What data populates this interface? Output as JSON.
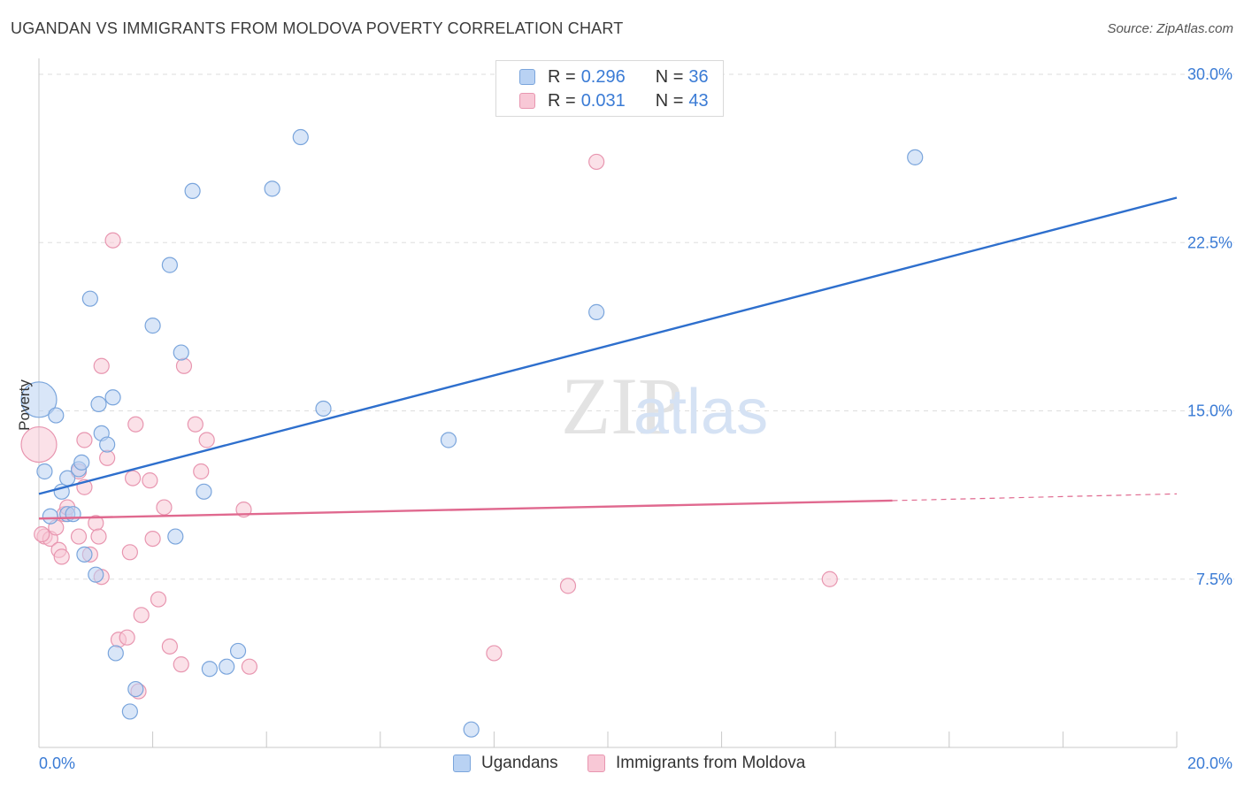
{
  "title": "UGANDAN VS IMMIGRANTS FROM MOLDOVA POVERTY CORRELATION CHART",
  "source": "Source: ZipAtlas.com",
  "legend": {
    "rows": [
      {
        "r_label": "R =",
        "r_value": "0.296",
        "n_label": "N =",
        "n_value": "36"
      },
      {
        "r_label": "R =",
        "r_value": "0.031",
        "n_label": "N =",
        "n_value": "43"
      }
    ],
    "bottom": [
      "Ugandans",
      "Immigrants from Moldova"
    ]
  },
  "watermark": {
    "part1": "ZIP",
    "part2": "atlas"
  },
  "colors": {
    "ugandans_fill": "#b9d2f3",
    "ugandans_stroke": "#7aa5dc",
    "ugandans_line": "#2e6fcd",
    "moldova_fill": "#f8c8d6",
    "moldova_stroke": "#e896b0",
    "moldova_line": "#e0698f",
    "tick_label": "#3a7bd5",
    "grid": "#dddddd"
  },
  "chart_data": {
    "type": "scatter",
    "xlabel": "",
    "ylabel": "Poverty",
    "xlim": [
      0,
      20
    ],
    "ylim": [
      0,
      30
    ],
    "x_tick_labels": [
      "0.0%",
      "20.0%"
    ],
    "y_ticks": [
      7.5,
      15.0,
      22.5,
      30.0
    ],
    "y_tick_labels": [
      "7.5%",
      "15.0%",
      "22.5%",
      "30.0%"
    ],
    "grid": "horizontal dashed",
    "legend_position": "top-center",
    "series": [
      {
        "name": "Ugandans",
        "points": [
          [
            0.0,
            15.5,
            "large"
          ],
          [
            0.1,
            12.3
          ],
          [
            0.3,
            14.8
          ],
          [
            0.2,
            10.3
          ],
          [
            0.4,
            11.4
          ],
          [
            0.5,
            10.4
          ],
          [
            0.5,
            12.0
          ],
          [
            0.6,
            10.4
          ],
          [
            0.7,
            12.4
          ],
          [
            0.75,
            12.7
          ],
          [
            0.8,
            8.6
          ],
          [
            0.9,
            20.0
          ],
          [
            1.0,
            7.7
          ],
          [
            1.05,
            15.3
          ],
          [
            1.1,
            14.0
          ],
          [
            1.2,
            13.5
          ],
          [
            1.3,
            15.6
          ],
          [
            1.35,
            4.2
          ],
          [
            1.6,
            1.6
          ],
          [
            1.7,
            2.6
          ],
          [
            2.0,
            18.8
          ],
          [
            2.3,
            21.5
          ],
          [
            2.4,
            9.4
          ],
          [
            2.5,
            17.6
          ],
          [
            2.7,
            24.8
          ],
          [
            2.9,
            11.4
          ],
          [
            3.0,
            3.5
          ],
          [
            3.3,
            3.6
          ],
          [
            3.5,
            4.3
          ],
          [
            4.1,
            24.9
          ],
          [
            4.6,
            27.2
          ],
          [
            5.0,
            15.1
          ],
          [
            7.2,
            13.7
          ],
          [
            7.6,
            0.8
          ],
          [
            9.8,
            19.4
          ],
          [
            15.4,
            26.3
          ]
        ],
        "trend": {
          "x": [
            0,
            20
          ],
          "y": [
            11.3,
            24.5
          ]
        }
      },
      {
        "name": "Immigrants from Moldova",
        "points": [
          [
            0.0,
            13.5,
            "large"
          ],
          [
            0.1,
            9.4
          ],
          [
            0.2,
            9.3
          ],
          [
            0.3,
            9.8
          ],
          [
            0.35,
            8.8
          ],
          [
            0.4,
            8.5
          ],
          [
            0.45,
            10.4
          ],
          [
            0.5,
            10.7
          ],
          [
            0.7,
            9.4
          ],
          [
            0.7,
            12.3
          ],
          [
            0.8,
            13.7
          ],
          [
            0.8,
            11.6
          ],
          [
            0.9,
            8.6
          ],
          [
            1.0,
            10.0
          ],
          [
            1.05,
            9.4
          ],
          [
            1.1,
            7.6
          ],
          [
            1.1,
            17.0
          ],
          [
            1.2,
            12.9
          ],
          [
            1.3,
            22.6
          ],
          [
            1.4,
            4.8
          ],
          [
            1.55,
            4.9
          ],
          [
            1.6,
            8.7
          ],
          [
            1.65,
            12.0
          ],
          [
            1.7,
            14.4
          ],
          [
            1.75,
            2.5
          ],
          [
            1.8,
            5.9
          ],
          [
            1.95,
            11.9
          ],
          [
            2.0,
            9.3
          ],
          [
            2.1,
            6.6
          ],
          [
            2.2,
            10.7
          ],
          [
            2.3,
            4.5
          ],
          [
            2.5,
            3.7
          ],
          [
            2.55,
            17.0
          ],
          [
            2.75,
            14.4
          ],
          [
            2.85,
            12.3
          ],
          [
            2.95,
            13.7
          ],
          [
            3.6,
            10.6
          ],
          [
            3.7,
            3.6
          ],
          [
            8.0,
            4.2
          ],
          [
            9.3,
            7.2
          ],
          [
            9.8,
            26.1
          ],
          [
            13.9,
            7.5
          ],
          [
            0.05,
            9.5
          ]
        ],
        "trend": {
          "x": [
            0,
            15
          ],
          "y": [
            10.2,
            11.0
          ]
        },
        "trend_dashed": {
          "x": [
            15,
            20
          ],
          "y": [
            11.0,
            11.3
          ]
        }
      }
    ]
  }
}
